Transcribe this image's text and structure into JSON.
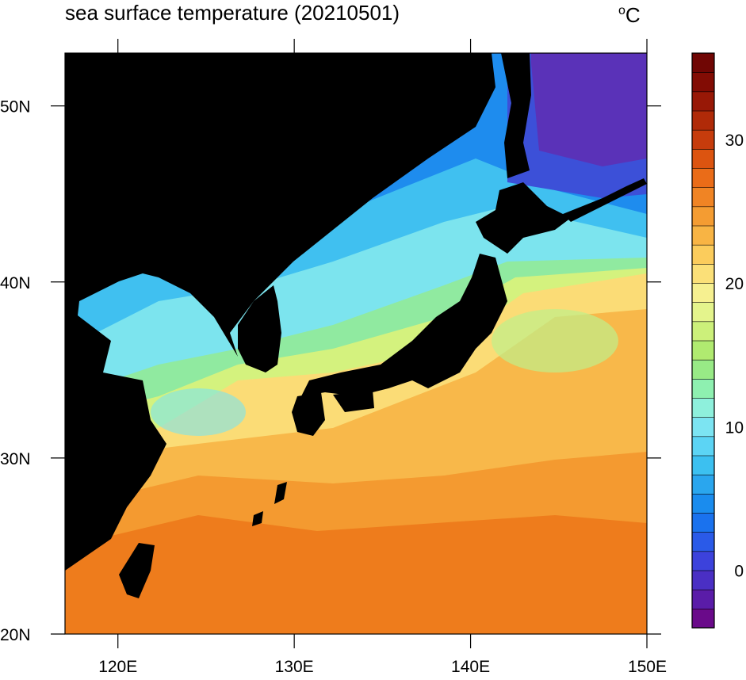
{
  "title": "sea surface temperature (20210501)",
  "units": {
    "prefix": "o",
    "text": "C"
  },
  "map": {
    "lon_range": [
      117,
      150
    ],
    "lat_range": [
      20,
      53
    ],
    "lon_ticks": [
      {
        "value": 120,
        "label": "120E"
      },
      {
        "value": 130,
        "label": "130E"
      },
      {
        "value": 140,
        "label": "140E"
      },
      {
        "value": 150,
        "label": "150E"
      }
    ],
    "lat_ticks": [
      {
        "value": 20,
        "label": "20N"
      },
      {
        "value": 30,
        "label": "30N"
      },
      {
        "value": 40,
        "label": "40N"
      },
      {
        "value": 50,
        "label": "50N"
      }
    ],
    "land_color": "#000000"
  },
  "colorbar": {
    "min": -4,
    "max": 36,
    "ticks": [
      {
        "value": 0,
        "label": "0"
      },
      {
        "value": 10,
        "label": "10"
      },
      {
        "value": 20,
        "label": "20"
      },
      {
        "value": 30,
        "label": "30"
      }
    ],
    "colors": [
      "#6a0a8a",
      "#5a1ca8",
      "#4a2fc4",
      "#3c42dc",
      "#2a5ae8",
      "#1a72ee",
      "#1a8cee",
      "#2aa6ee",
      "#3cc0f0",
      "#5cd4f4",
      "#7ce4f2",
      "#8ef0dc",
      "#8ef0b0",
      "#98ea86",
      "#b0ea70",
      "#ccf07a",
      "#e4f48c",
      "#f6f090",
      "#fbe078",
      "#fbcc5c",
      "#f8b444",
      "#f49c32",
      "#f08424",
      "#ea6c18",
      "#dc5410",
      "#c63c0c",
      "#b02a08",
      "#981806",
      "#820c04",
      "#700604"
    ]
  }
}
